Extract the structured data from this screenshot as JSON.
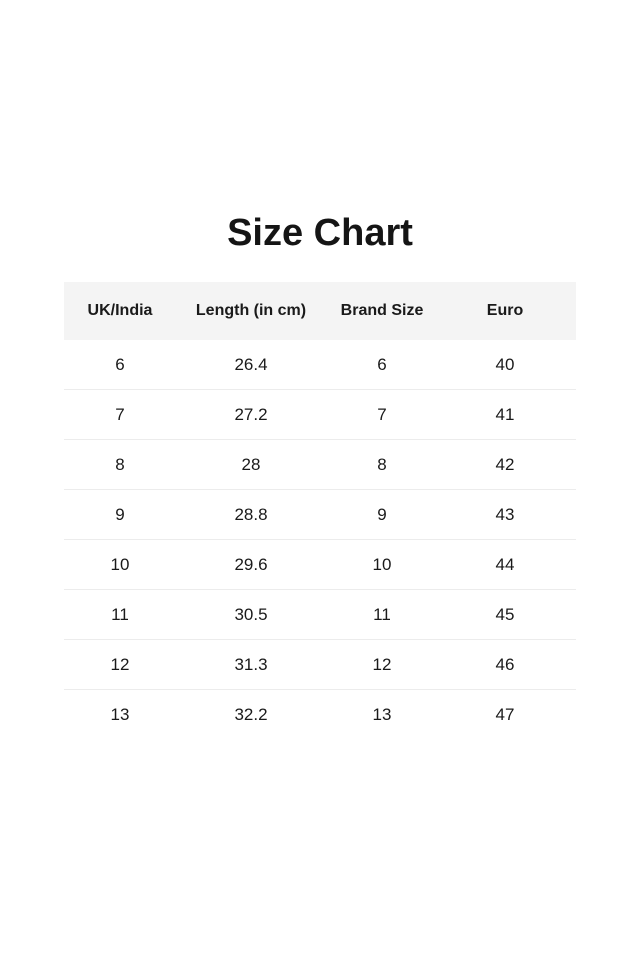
{
  "title": "Size Chart",
  "table": {
    "headers": [
      "UK/India",
      "Length (in cm)",
      "Brand Size",
      "Euro"
    ],
    "rows": [
      [
        "6",
        "26.4",
        "6",
        "40"
      ],
      [
        "7",
        "27.2",
        "7",
        "41"
      ],
      [
        "8",
        "28",
        "8",
        "42"
      ],
      [
        "9",
        "28.8",
        "9",
        "43"
      ],
      [
        "10",
        "29.6",
        "10",
        "44"
      ],
      [
        "11",
        "30.5",
        "11",
        "45"
      ],
      [
        "12",
        "31.3",
        "12",
        "46"
      ],
      [
        "13",
        "32.2",
        "13",
        "47"
      ]
    ]
  }
}
